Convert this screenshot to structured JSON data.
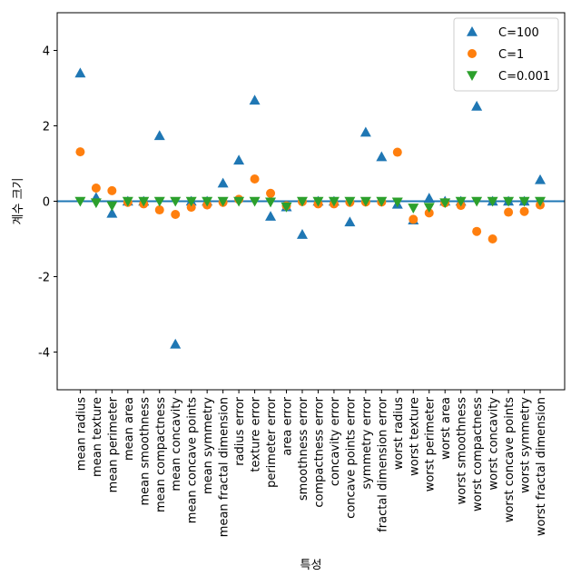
{
  "chart_data": {
    "type": "scatter",
    "title": "",
    "xlabel": "특성",
    "ylabel": "계수 크기",
    "ylim": [
      -5,
      5
    ],
    "yticks": [
      -4,
      -2,
      0,
      2,
      4
    ],
    "grid": false,
    "legend_position": "top-right",
    "hline": {
      "y": 0,
      "color": "#1f77b4"
    },
    "categories": [
      "mean radius",
      "mean texture",
      "mean perimeter",
      "mean area",
      "mean smoothness",
      "mean compactness",
      "mean concavity",
      "mean concave points",
      "mean symmetry",
      "mean fractal dimension",
      "radius error",
      "texture error",
      "perimeter error",
      "area error",
      "smoothness error",
      "compactness error",
      "concavity error",
      "concave points error",
      "symmetry error",
      "fractal dimension error",
      "worst radius",
      "worst texture",
      "worst perimeter",
      "worst area",
      "worst smoothness",
      "worst compactness",
      "worst concavity",
      "worst concave points",
      "worst symmetry",
      "worst fractal dimension"
    ],
    "series": [
      {
        "name": "C=100",
        "marker": "triangle-up",
        "color": "#1f77b4",
        "values": [
          3.4,
          0.1,
          -0.32,
          0.0,
          0.0,
          1.74,
          -3.79,
          0.0,
          0.0,
          0.48,
          1.09,
          2.68,
          -0.4,
          -0.15,
          -0.88,
          0.0,
          0.0,
          -0.55,
          1.83,
          1.18,
          -0.08,
          -0.5,
          0.08,
          0.0,
          0.0,
          2.52,
          0.0,
          0.0,
          0.0,
          0.57
        ]
      },
      {
        "name": "C=1",
        "marker": "circle",
        "color": "#ff7f0e",
        "values": [
          1.31,
          0.35,
          0.28,
          -0.03,
          -0.07,
          -0.23,
          -0.35,
          -0.16,
          -0.1,
          -0.03,
          0.05,
          0.59,
          0.21,
          -0.12,
          -0.01,
          -0.07,
          -0.07,
          -0.03,
          -0.02,
          -0.02,
          1.3,
          -0.48,
          -0.31,
          -0.04,
          -0.11,
          -0.8,
          -1.0,
          -0.29,
          -0.27,
          -0.1
        ]
      },
      {
        "name": "C=0.001",
        "marker": "triangle-down",
        "color": "#2ca02c",
        "values": [
          0.0,
          -0.04,
          -0.12,
          0.0,
          0.0,
          0.0,
          0.0,
          0.0,
          0.0,
          0.0,
          0.0,
          0.0,
          -0.02,
          -0.15,
          0.0,
          0.0,
          0.0,
          0.0,
          0.0,
          0.0,
          -0.02,
          -0.18,
          -0.16,
          -0.04,
          0.0,
          0.0,
          0.0,
          0.0,
          0.0,
          0.0
        ]
      }
    ]
  }
}
